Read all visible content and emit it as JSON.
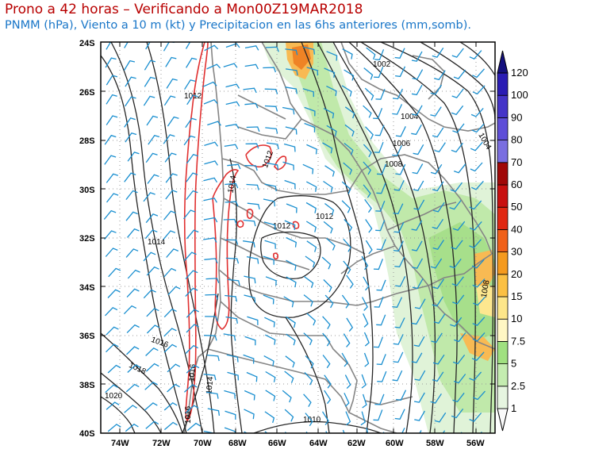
{
  "title": "Prono a 42 horas – Verificando a Mon00Z19MAR2018",
  "subtitle": "PNMM (hPa), Viento a 10 m (kt) y Precipitacion en las 6hs anteriores (mm,somb).",
  "lat_labels": [
    "24S",
    "26S",
    "28S",
    "30S",
    "32S",
    "34S",
    "36S",
    "38S",
    "40S"
  ],
  "lon_labels": [
    "74W",
    "72W",
    "70W",
    "68W",
    "66W",
    "64W",
    "62W",
    "60W",
    "58W",
    "56W"
  ],
  "colorbar": {
    "labels": [
      "1",
      "2.5",
      "5",
      "7.5",
      "10",
      "15",
      "20",
      "30",
      "40",
      "50",
      "60",
      "70",
      "80",
      "90",
      "100",
      "120"
    ],
    "colors": [
      "#fafafa",
      "#e6f5e0",
      "#c4ecb0",
      "#a0e080",
      "#fff7c4",
      "#fde68a",
      "#fbc043",
      "#f59a1e",
      "#f06018",
      "#e02812",
      "#c81010",
      "#a00808",
      "#7a6ee0",
      "#5e4ed8",
      "#4434c8",
      "#2a1cb4"
    ],
    "top_color": "#14107e"
  },
  "isobar_labels": [
    {
      "text": "1002"
    },
    {
      "text": "1004"
    },
    {
      "text": "1006"
    },
    {
      "text": "1008"
    },
    {
      "text": "1004"
    },
    {
      "text": "1012"
    },
    {
      "text": "1012"
    },
    {
      "text": "1012"
    },
    {
      "text": "1012"
    },
    {
      "text": "1014"
    },
    {
      "text": "1014"
    },
    {
      "text": "1014"
    },
    {
      "text": "1016"
    },
    {
      "text": "1018"
    },
    {
      "text": "1020"
    },
    {
      "text": "1016"
    },
    {
      "text": "1016"
    },
    {
      "text": "1010"
    },
    {
      "text": "1008"
    }
  ],
  "colors": {
    "title": "#b80000",
    "subtitle": "#1976c8",
    "wind": "#1a8fd0",
    "isobar": "#222222",
    "red_contour": "#e03030",
    "borders": "#808080"
  }
}
